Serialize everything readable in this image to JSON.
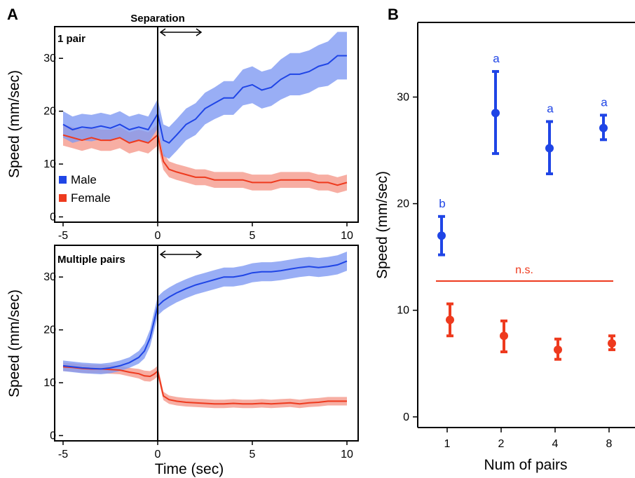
{
  "panel_labels": {
    "a": "A",
    "b": "B"
  },
  "colors": {
    "male": "#1f45e6",
    "female": "#ee3a1e",
    "male_band": "#7f9af2",
    "female_band": "#f59a8c"
  },
  "chart_data": [
    {
      "type": "line",
      "panel": "A-top",
      "label": "1 pair",
      "annotation": "Separation",
      "xlabel": "",
      "ylabel": "Speed (mm/sec)",
      "xlim": [
        -5,
        10
      ],
      "ylim": [
        -1,
        36
      ],
      "xticks": [
        "-5",
        "0",
        "5",
        "10"
      ],
      "yticks": [
        "0",
        "10",
        "20",
        "30"
      ],
      "legend": {
        "placement": "bottom-left",
        "entries": [
          "Male",
          "Female"
        ]
      },
      "x": [
        -5,
        -4.5,
        -4,
        -3.5,
        -3,
        -2.5,
        -2,
        -1.5,
        -1,
        -0.5,
        0,
        0.3,
        0.6,
        1,
        1.5,
        2,
        2.5,
        3,
        3.5,
        4,
        4.5,
        5,
        5.5,
        6,
        6.5,
        7,
        7.5,
        8,
        8.5,
        9,
        9.5,
        10
      ],
      "series": [
        {
          "name": "Male",
          "values": [
            17.5,
            16.5,
            17,
            16.8,
            17.2,
            16.8,
            17.5,
            16.5,
            17,
            16.5,
            19.5,
            14.5,
            14,
            15.5,
            17.5,
            18.5,
            20.5,
            21.5,
            22.5,
            22.5,
            24.5,
            25,
            24,
            24.5,
            26,
            27,
            27,
            27.5,
            28.5,
            29,
            30.5,
            30.5
          ],
          "err": [
            2.5,
            2.5,
            2.5,
            2.5,
            2.5,
            2.5,
            2.5,
            2.5,
            2.5,
            2.5,
            2.8,
            3,
            3,
            3,
            3,
            3,
            3,
            3,
            3.2,
            3.2,
            3.4,
            3.5,
            3.5,
            3.5,
            3.8,
            4,
            4,
            4,
            4,
            4.2,
            4.5,
            4.5
          ]
        },
        {
          "name": "Female",
          "values": [
            15.5,
            15,
            14.5,
            15,
            14.5,
            14.5,
            15,
            14,
            14.5,
            14,
            15.5,
            10.5,
            9,
            8.5,
            8,
            7.5,
            7.5,
            7,
            7,
            7,
            7,
            6.5,
            6.5,
            6.5,
            7,
            7,
            7,
            7,
            6.5,
            6.5,
            6,
            6.5
          ],
          "err": [
            2,
            2,
            2,
            2,
            2,
            2,
            2,
            2,
            2,
            2,
            2,
            1.6,
            1.5,
            1.5,
            1.5,
            1.5,
            1.5,
            1.5,
            1.5,
            1.5,
            1.5,
            1.5,
            1.5,
            1.5,
            1.5,
            1.5,
            1.5,
            1.5,
            1.5,
            1.5,
            1.5,
            1.5
          ]
        }
      ]
    },
    {
      "type": "line",
      "panel": "A-bottom",
      "label": "Multiple pairs",
      "xlabel": "Time (sec)",
      "ylabel": "Speed (mm/sec)",
      "xlim": [
        -5,
        10
      ],
      "ylim": [
        -1,
        36
      ],
      "xticks": [
        "-5",
        "0",
        "5",
        "10"
      ],
      "yticks": [
        "0",
        "10",
        "20",
        "30"
      ],
      "x": [
        -5,
        -4.5,
        -4,
        -3.5,
        -3,
        -2.5,
        -2,
        -1.5,
        -1,
        -0.7,
        -0.4,
        -0.2,
        0,
        0.3,
        0.6,
        1,
        1.5,
        2,
        2.5,
        3,
        3.5,
        4,
        4.5,
        5,
        5.5,
        6,
        6.5,
        7,
        7.5,
        8,
        8.5,
        9,
        9.5,
        10
      ],
      "series": [
        {
          "name": "Male",
          "values": [
            13.2,
            13,
            12.8,
            12.7,
            12.6,
            12.8,
            13.2,
            13.8,
            14.8,
            16,
            18.5,
            21.5,
            24.5,
            25.5,
            26.2,
            27,
            27.8,
            28.5,
            29,
            29.5,
            30,
            30,
            30.3,
            30.8,
            31,
            31,
            31.2,
            31.5,
            31.8,
            32,
            31.8,
            32,
            32.3,
            33
          ],
          "err": [
            1,
            1,
            1,
            1,
            1,
            1,
            1,
            1,
            1.2,
            1.4,
            1.6,
            1.8,
            1.8,
            1.8,
            1.8,
            1.8,
            1.8,
            1.8,
            1.8,
            1.8,
            1.8,
            1.8,
            1.8,
            1.8,
            1.8,
            1.8,
            1.8,
            1.8,
            1.8,
            1.8,
            1.8,
            1.8,
            1.8,
            1.8
          ]
        },
        {
          "name": "Female",
          "values": [
            13,
            12.9,
            12.7,
            12.6,
            12.6,
            12.5,
            12.4,
            12,
            11.7,
            11.3,
            11.2,
            11.6,
            12.2,
            7.5,
            6.8,
            6.5,
            6.3,
            6.2,
            6.1,
            6,
            6,
            6.1,
            6,
            6,
            6.1,
            6,
            6.1,
            6.2,
            6,
            6.2,
            6.3,
            6.5,
            6.5,
            6.5
          ],
          "err": [
            0.8,
            0.8,
            0.8,
            0.8,
            0.8,
            0.8,
            0.8,
            0.8,
            0.9,
            1,
            1,
            1,
            1,
            0.8,
            0.8,
            0.8,
            0.8,
            0.8,
            0.8,
            0.8,
            0.8,
            0.8,
            0.8,
            0.8,
            0.8,
            0.8,
            0.8,
            0.8,
            0.8,
            0.8,
            0.8,
            0.8,
            0.8,
            0.8
          ]
        }
      ]
    },
    {
      "type": "scatter",
      "panel": "B",
      "xlabel": "Num of pairs",
      "ylabel": "Speed (mm/sec)",
      "categories": [
        "1",
        "2",
        "4",
        "8"
      ],
      "ylim": [
        -1,
        37
      ],
      "yticks": [
        "0",
        "10",
        "20",
        "30"
      ],
      "series": [
        {
          "name": "Male",
          "values": [
            17,
            28.5,
            25.2,
            27.1
          ],
          "err_low": [
            15.2,
            24.7,
            22.8,
            26
          ],
          "err_high": [
            18.8,
            32.4,
            27.7,
            28.3
          ],
          "letters": [
            "b",
            "a",
            "a",
            "a"
          ]
        },
        {
          "name": "Female",
          "values": [
            9.1,
            7.6,
            6.3,
            6.9
          ],
          "err_low": [
            7.6,
            6.1,
            5.4,
            6.3
          ],
          "err_high": [
            10.6,
            9,
            7.3,
            7.6
          ]
        }
      ],
      "annotation": "n.s."
    }
  ]
}
